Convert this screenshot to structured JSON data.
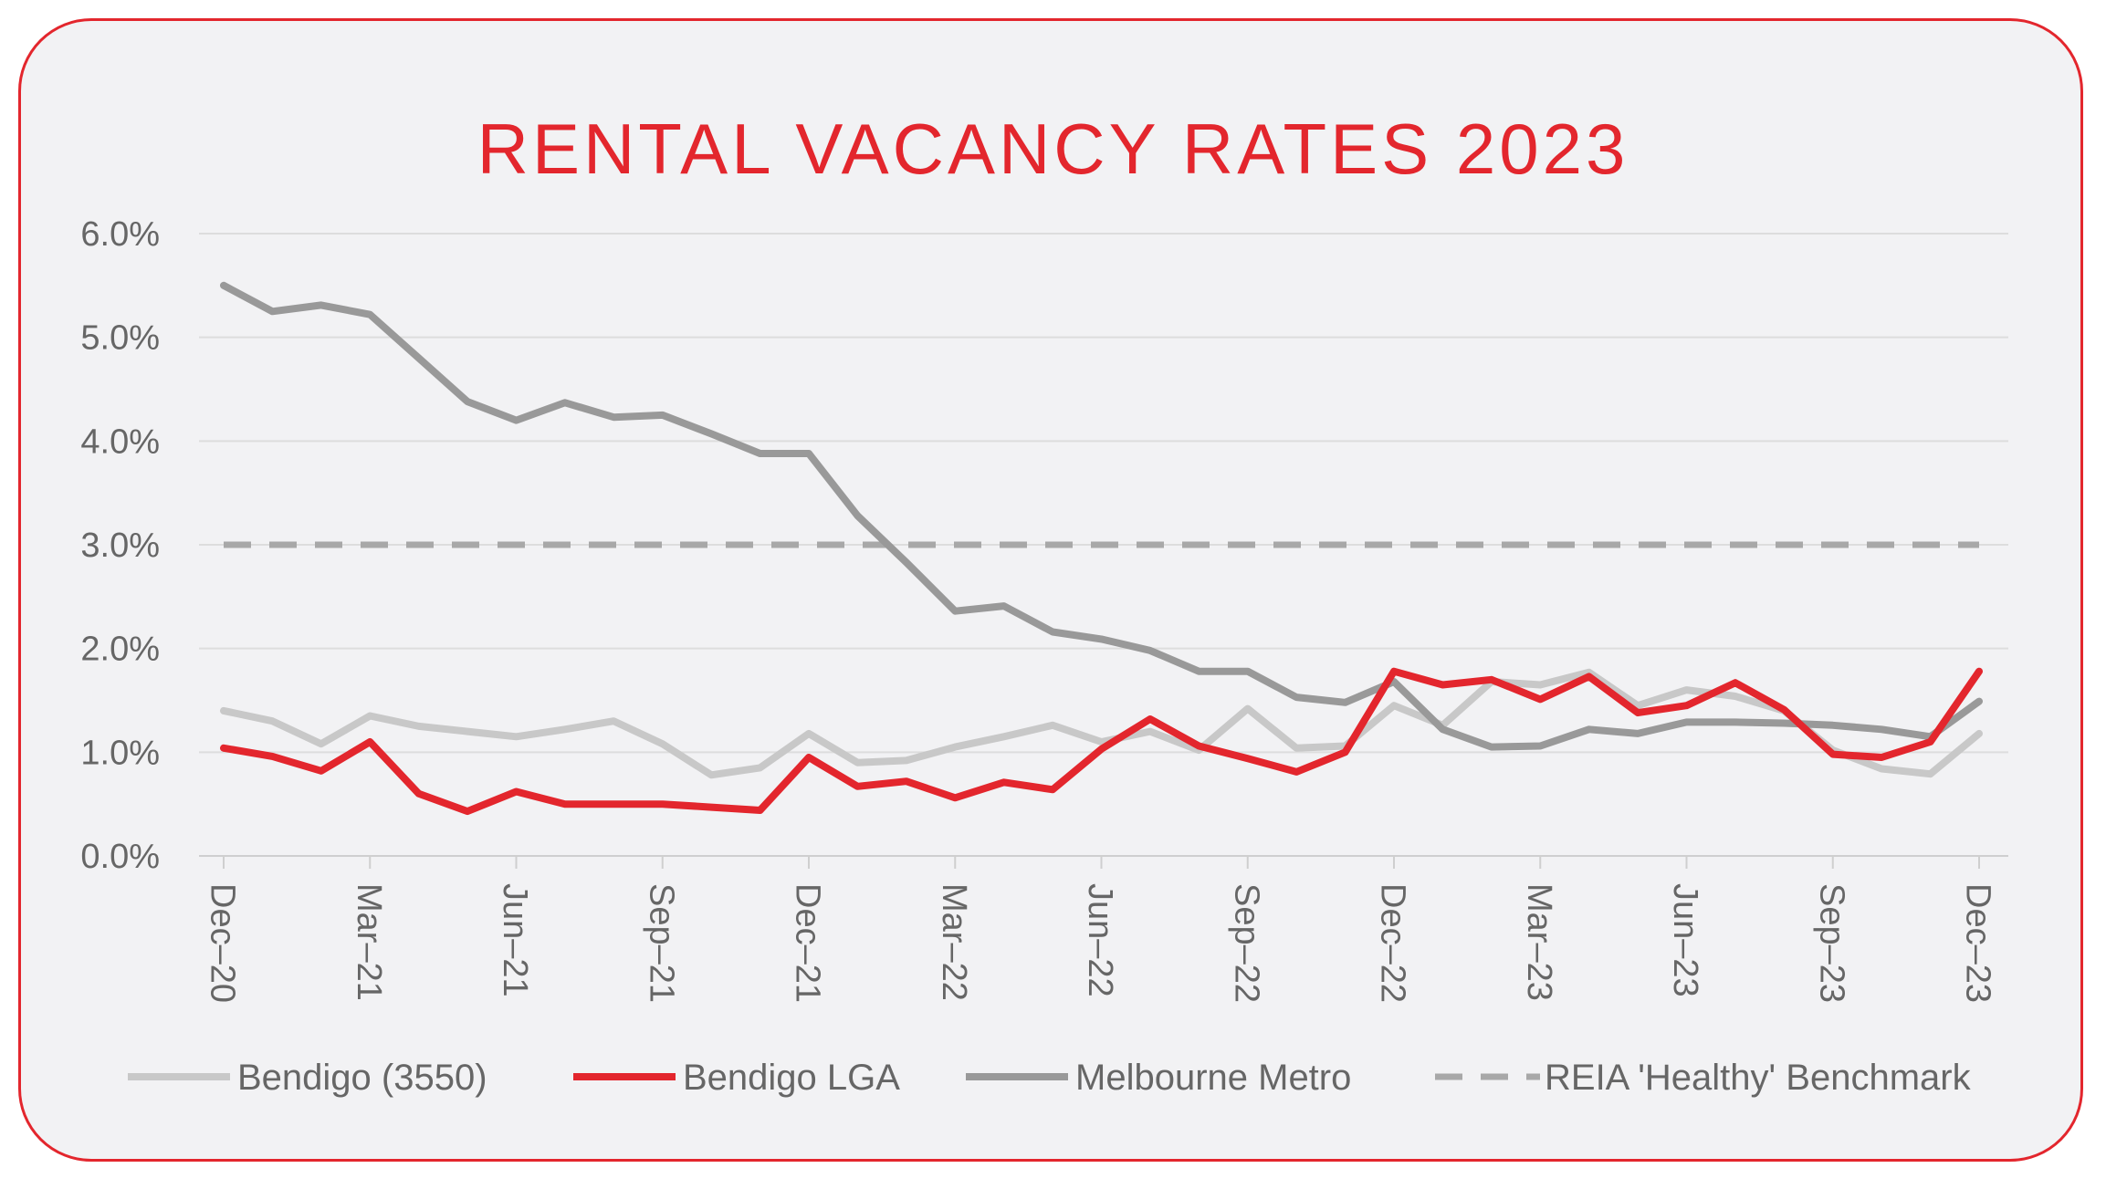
{
  "chart_data": {
    "type": "line",
    "title": "RENTAL VACANCY RATES 2023",
    "xlabel": "",
    "ylabel": "",
    "ylim": [
      0,
      6
    ],
    "yticks": [
      "0.0%",
      "1.0%",
      "2.0%",
      "3.0%",
      "4.0%",
      "5.0%",
      "6.0%"
    ],
    "x_tick_labels": [
      "Dec–20",
      "Mar–21",
      "Jun–21",
      "Sep–21",
      "Dec–21",
      "Mar–22",
      "Jun–22",
      "Sep–22",
      "Dec–22",
      "Mar–23",
      "Jun–23",
      "Sep–23",
      "Dec–23"
    ],
    "x_months": [
      "Dec-20",
      "Jan-21",
      "Feb-21",
      "Mar-21",
      "Apr-21",
      "May-21",
      "Jun-21",
      "Jul-21",
      "Aug-21",
      "Sep-21",
      "Oct-21",
      "Nov-21",
      "Dec-21",
      "Jan-22",
      "Feb-22",
      "Mar-22",
      "Apr-22",
      "May-22",
      "Jun-22",
      "Jul-22",
      "Aug-22",
      "Sep-22",
      "Oct-22",
      "Nov-22",
      "Dec-22",
      "Jan-23",
      "Feb-23",
      "Mar-23",
      "Apr-23",
      "May-23",
      "Jun-23",
      "Jul-23",
      "Aug-23",
      "Sep-23",
      "Oct-23",
      "Nov-23",
      "Dec-23"
    ],
    "grid": true,
    "legend_position": "bottom",
    "series": [
      {
        "name": "Bendigo (3550)",
        "color": "#c8c8c8",
        "dashed": false,
        "values": [
          1.4,
          1.3,
          1.08,
          1.35,
          1.25,
          1.2,
          1.15,
          1.22,
          1.3,
          1.08,
          0.78,
          0.85,
          1.18,
          0.9,
          0.92,
          1.05,
          1.15,
          1.26,
          1.1,
          1.2,
          1.02,
          1.42,
          1.04,
          1.06,
          1.45,
          1.26,
          1.68,
          1.65,
          1.77,
          1.45,
          1.6,
          1.54,
          1.4,
          1.02,
          0.84,
          0.79,
          1.18
        ]
      },
      {
        "name": "Bendigo LGA",
        "color": "#e3262d",
        "dashed": false,
        "values": [
          1.04,
          0.96,
          0.82,
          1.1,
          0.6,
          0.43,
          0.62,
          0.5,
          0.5,
          0.5,
          0.47,
          0.44,
          0.95,
          0.67,
          0.72,
          0.56,
          0.71,
          0.64,
          1.03,
          1.32,
          1.06,
          0.94,
          0.81,
          1.0,
          1.78,
          1.65,
          1.7,
          1.51,
          1.73,
          1.38,
          1.45,
          1.67,
          1.41,
          0.98,
          0.95,
          1.1,
          1.78
        ]
      },
      {
        "name": "Melbourne Metro",
        "color": "#999999",
        "dashed": false,
        "values": [
          5.5,
          5.25,
          5.31,
          5.22,
          4.8,
          4.38,
          4.2,
          4.37,
          4.23,
          4.25,
          4.07,
          3.88,
          3.88,
          3.28,
          2.83,
          2.36,
          2.41,
          2.16,
          2.09,
          1.98,
          1.78,
          1.78,
          1.53,
          1.48,
          1.68,
          1.22,
          1.05,
          1.06,
          1.22,
          1.18,
          1.29,
          1.29,
          1.28,
          1.26,
          1.22,
          1.15,
          1.49
        ]
      },
      {
        "name": "REIA 'Healthy' Benchmark",
        "color": "#a8a8a8",
        "dashed": true,
        "values": [
          3.0,
          3.0,
          3.0,
          3.0,
          3.0,
          3.0,
          3.0,
          3.0,
          3.0,
          3.0,
          3.0,
          3.0,
          3.0,
          3.0,
          3.0,
          3.0,
          3.0,
          3.0,
          3.0,
          3.0,
          3.0,
          3.0,
          3.0,
          3.0,
          3.0,
          3.0,
          3.0,
          3.0,
          3.0,
          3.0,
          3.0,
          3.0,
          3.0,
          3.0,
          3.0,
          3.0,
          3.0
        ]
      }
    ]
  }
}
